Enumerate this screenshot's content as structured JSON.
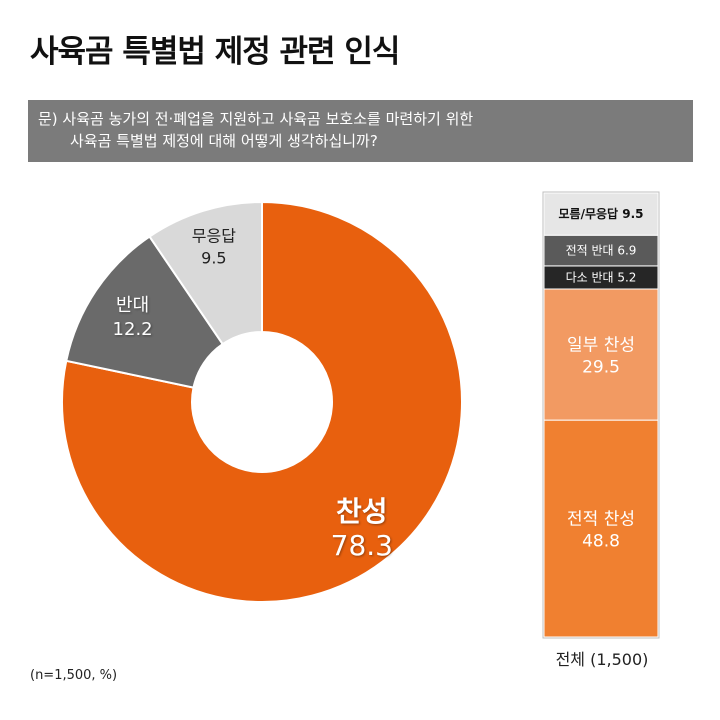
{
  "header": {
    "title": "사육곰 특별법 제정 관련 인식",
    "question_line1": "문) 사육곰 농가의 전·폐업을 지원하고 사육곰 보호소를 마련하기 위한",
    "question_line2": "사육곰 특별법 제정에 대해 어떻게 생각하십니까?"
  },
  "footer": {
    "note": "(n=1,500, %)",
    "total_label": "전체 (1,500)"
  },
  "colors": {
    "agree": "#e8600e",
    "oppose": "#6a6a6a",
    "no_answer": "#d9d9d9",
    "strong_agree": "#f08030",
    "partial_agree": "#f29a62",
    "partial_oppose": "#262626",
    "strong_oppose": "#5a5a5a",
    "dont_know": "#e6e6e6"
  },
  "chart_data": [
    {
      "type": "pie",
      "categories": [
        "찬성",
        "반대",
        "무응답"
      ],
      "values": [
        78.3,
        12.2,
        9.5
      ]
    },
    {
      "type": "bar",
      "stacked": true,
      "categories": [
        "전체 (1,500)"
      ],
      "series": [
        {
          "name": "전적 찬성",
          "values": [
            48.8
          ]
        },
        {
          "name": "일부 찬성",
          "values": [
            29.5
          ]
        },
        {
          "name": "다소 반대",
          "values": [
            5.2
          ]
        },
        {
          "name": "전적 반대",
          "values": [
            6.9
          ]
        },
        {
          "name": "모름/무응답",
          "values": [
            9.5
          ]
        }
      ]
    }
  ]
}
